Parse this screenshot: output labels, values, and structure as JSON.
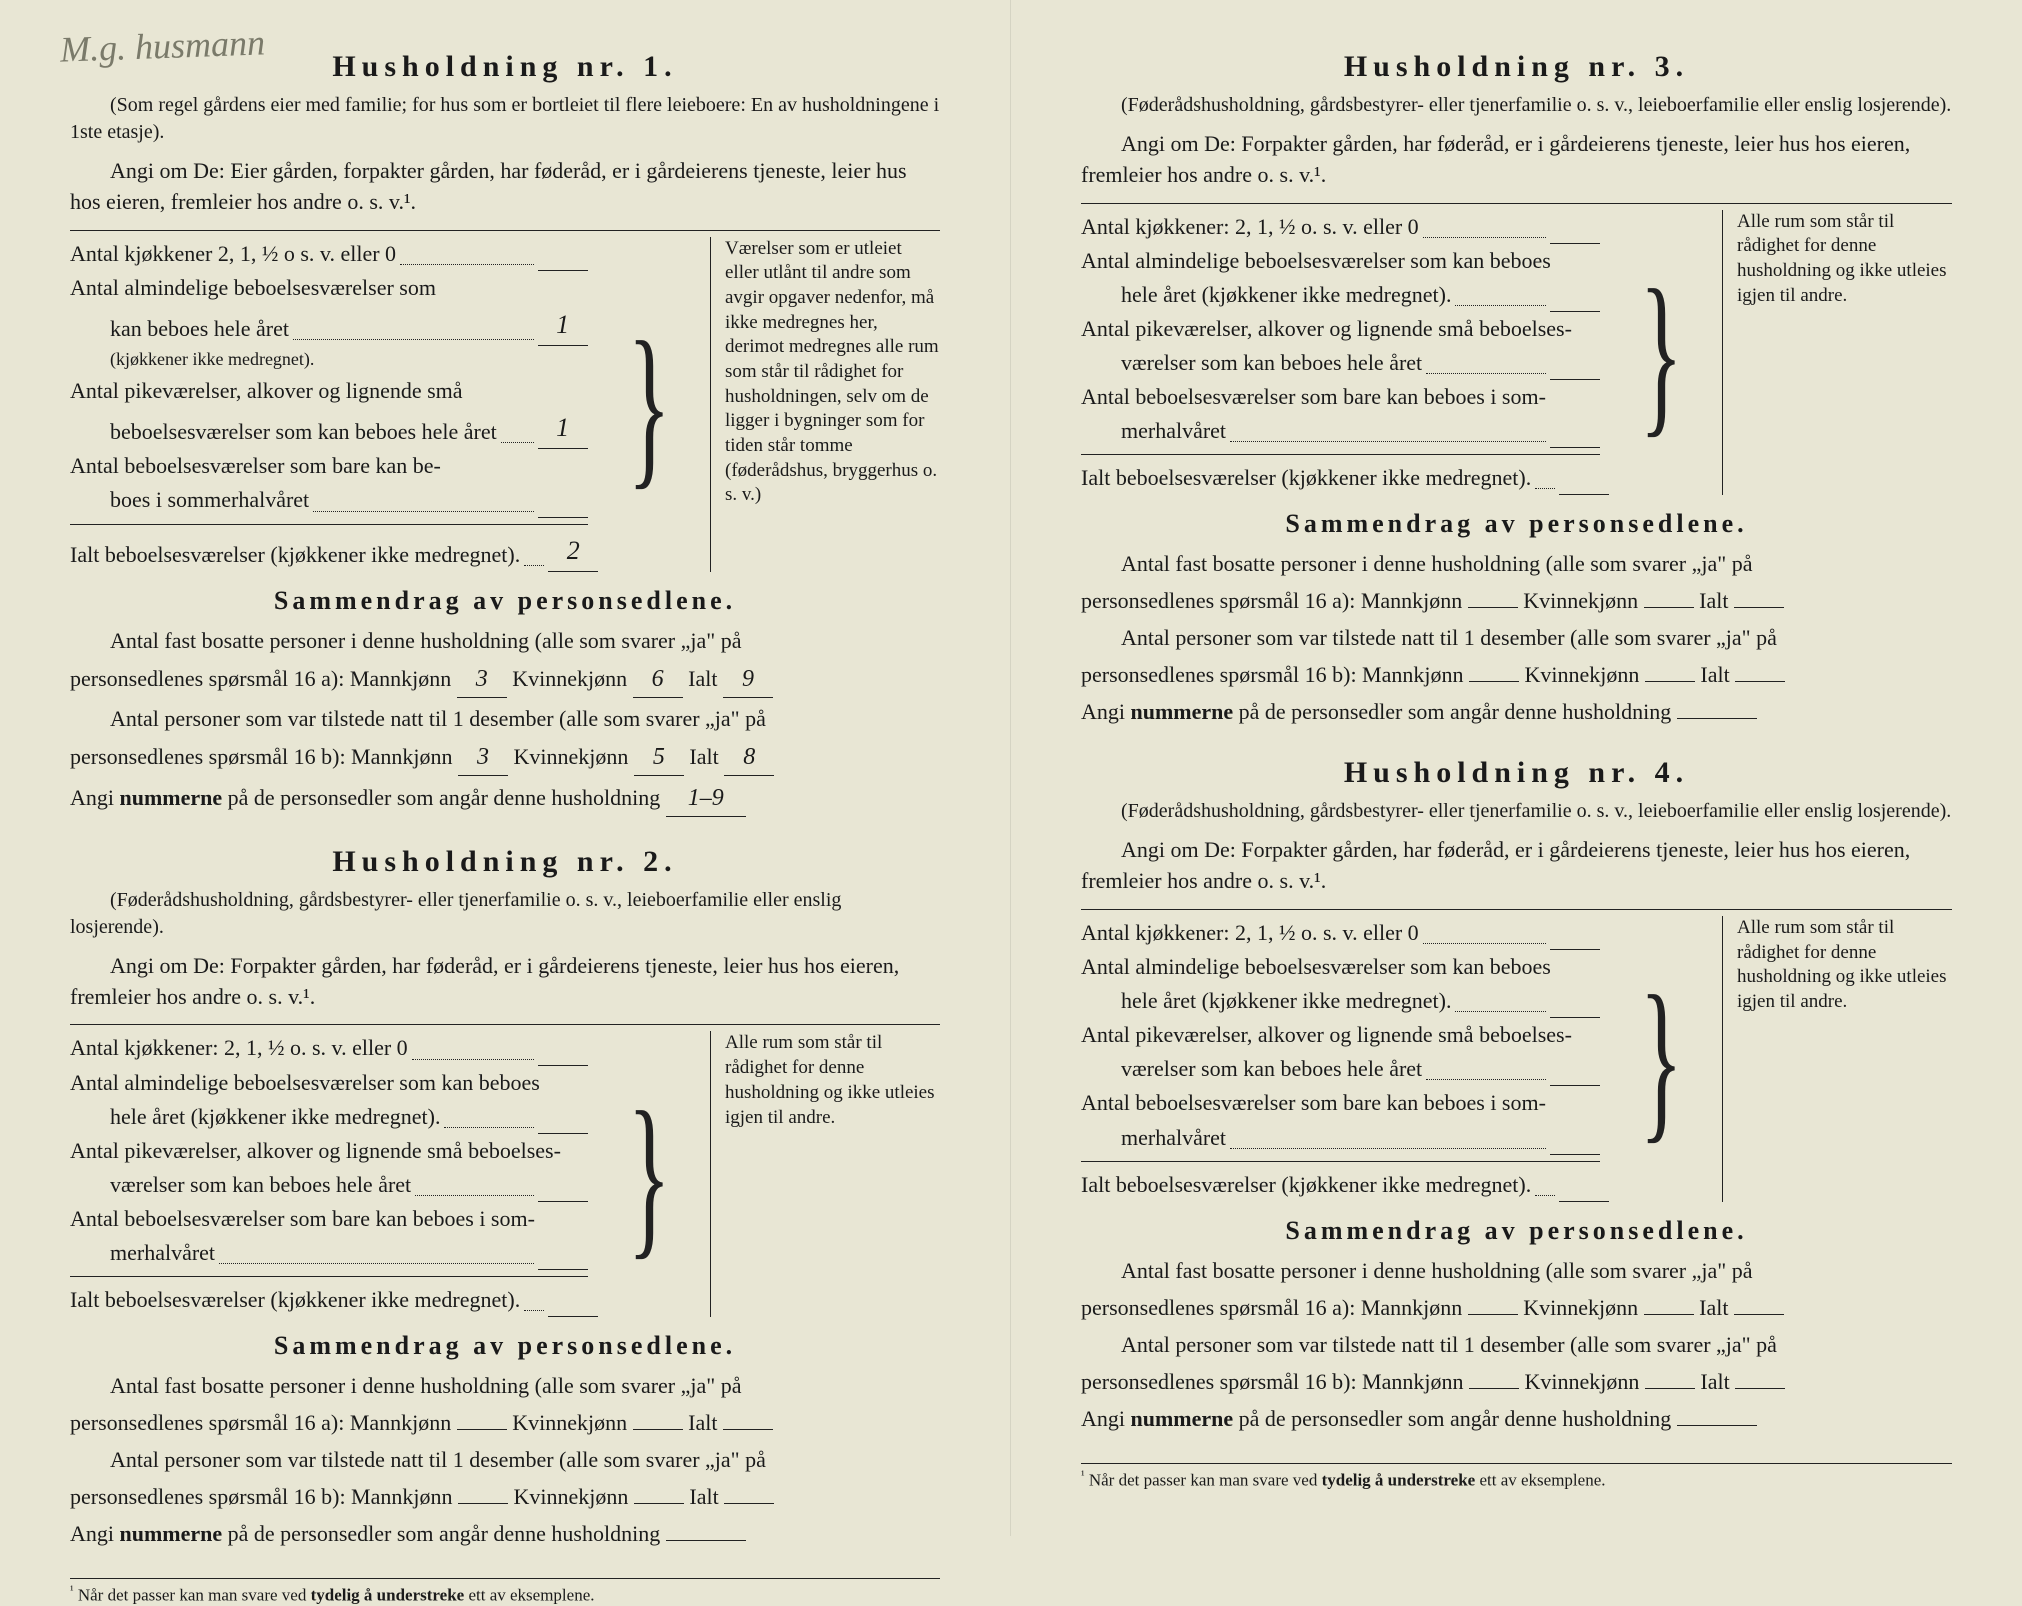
{
  "handwritten_top": "M.g. husmann",
  "households": [
    {
      "title": "Husholdning nr. 1.",
      "subtitle": "(Som regel gårdens eier med familie; for hus som er bortleiet til flere leieboere: En av husholdningene i 1ste etasje).",
      "instruction": "Angi om De: Eier gården, forpakter gården, har føderåd, er i gårdeierens tjeneste, leier hus hos eieren, fremleier hos andre o. s. v.¹.",
      "rows": {
        "kjokkener_label": "Antal kjøkkener 2, 1, ½ o s. v. eller 0",
        "kjokkener_value": "",
        "almindelige_label1": "Antal almindelige beboelsesværelser som",
        "almindelige_label2": "kan beboes hele året",
        "almindelige_subnote": "(kjøkkener ikke medregnet).",
        "almindelige_value": "1",
        "pike_label1": "Antal pikeværelser, alkover og lignende små",
        "pike_label2": "beboelsesværelser som kan beboes hele året",
        "pike_value": "1",
        "sommer_label1": "Antal beboelsesværelser som bare kan be-",
        "sommer_label2": "boes i sommerhalvåret",
        "sommer_value": "",
        "ialt_label": "Ialt beboelsesværelser (kjøkkener ikke medregnet).",
        "ialt_value": "2"
      },
      "sidenote": "Værelser som er utleiet eller utlånt til andre som avgir opgaver nedenfor, må ikke medregnes her, derimot medregnes alle rum som står til rådighet for husholdningen, selv om de ligger i bygninger som for tiden står tomme (føderådshus, bryggerhus o. s. v.)",
      "summary_title": "Sammendrag av personsedlene.",
      "summary": {
        "line1a": "Antal fast bosatte personer i denne husholdning (alle som svarer „ja\" på",
        "line1b_prefix": "personsedlenes spørsmål 16 a): Mannkjønn",
        "mann_a": "3",
        "kvinne_label": "Kvinnekjønn",
        "kvinne_a": "6",
        "ialt_label": "Ialt",
        "ialt_a": "9",
        "line2a": "Antal personer som var tilstede natt til 1 desember (alle som svarer „ja\" på",
        "line2b_prefix": "personsedlenes spørsmål 16 b): Mannkjønn",
        "mann_b": "3",
        "kvinne_b": "5",
        "ialt_b": "8",
        "angi_prefix": "Angi ",
        "angi_bold": "nummerne",
        "angi_suffix": " på de personsedler som angår denne husholdning",
        "angi_value": "1–9"
      }
    },
    {
      "title": "Husholdning nr. 2.",
      "subtitle": "(Føderådshusholdning, gårdsbestyrer- eller tjenerfamilie o. s. v., leieboerfamilie eller enslig losjerende).",
      "instruction": "Angi om De: Forpakter gården, har føderåd, er i gårdeierens tjeneste, leier hus hos eieren, fremleier hos andre o. s. v.¹.",
      "rows": {
        "kjokkener_label": "Antal kjøkkener: 2, 1, ½ o. s. v. eller 0",
        "kjokkener_value": "",
        "almindelige_label1": "Antal almindelige beboelsesværelser som kan beboes",
        "almindelige_label2": "hele året (kjøkkener ikke medregnet).",
        "almindelige_value": "",
        "pike_label1": "Antal pikeværelser, alkover og lignende små beboelses-",
        "pike_label2": "værelser som kan beboes hele året",
        "pike_value": "",
        "sommer_label1": "Antal beboelsesværelser som bare kan beboes i som-",
        "sommer_label2": "merhalvåret",
        "sommer_value": "",
        "ialt_label": "Ialt beboelsesværelser (kjøkkener ikke medregnet).",
        "ialt_value": ""
      },
      "sidenote": "Alle rum som står til rådighet for denne husholdning og ikke utleies igjen til andre.",
      "summary_title": "Sammendrag av personsedlene.",
      "summary": {
        "line1a": "Antal fast bosatte personer i denne husholdning (alle som svarer „ja\" på",
        "line1b_prefix": "personsedlenes spørsmål 16 a): Mannkjønn",
        "mann_a": "",
        "kvinne_label": "Kvinnekjønn",
        "kvinne_a": "",
        "ialt_label": "Ialt",
        "ialt_a": "",
        "line2a": "Antal personer som var tilstede natt til 1 desember (alle som svarer „ja\" på",
        "line2b_prefix": "personsedlenes spørsmål 16 b): Mannkjønn",
        "mann_b": "",
        "kvinne_b": "",
        "ialt_b": "",
        "angi_prefix": "Angi ",
        "angi_bold": "nummerne",
        "angi_suffix": " på de personsedler som angår denne husholdning",
        "angi_value": ""
      }
    },
    {
      "title": "Husholdning nr. 3.",
      "subtitle": "(Føderådshusholdning, gårdsbestyrer- eller tjenerfamilie o. s. v., leieboerfamilie eller enslig losjerende).",
      "instruction": "Angi om De: Forpakter gården, har føderåd, er i gårdeierens tjeneste, leier hus hos eieren, fremleier hos andre o. s. v.¹.",
      "rows": {
        "kjokkener_label": "Antal kjøkkener: 2, 1, ½ o. s. v. eller 0",
        "kjokkener_value": "",
        "almindelige_label1": "Antal almindelige beboelsesværelser som kan beboes",
        "almindelige_label2": "hele året (kjøkkener ikke medregnet).",
        "almindelige_value": "",
        "pike_label1": "Antal pikeværelser, alkover og lignende små beboelses-",
        "pike_label2": "værelser som kan beboes hele året",
        "pike_value": "",
        "sommer_label1": "Antal beboelsesværelser som bare kan beboes i som-",
        "sommer_label2": "merhalvåret",
        "sommer_value": "",
        "ialt_label": "Ialt beboelsesværelser (kjøkkener ikke medregnet).",
        "ialt_value": ""
      },
      "sidenote": "Alle rum som står til rådighet for denne husholdning og ikke utleies igjen til andre.",
      "summary_title": "Sammendrag av personsedlene.",
      "summary": {
        "line1a": "Antal fast bosatte personer i denne husholdning (alle som svarer „ja\" på",
        "line1b_prefix": "personsedlenes spørsmål 16 a): Mannkjønn",
        "mann_a": "",
        "kvinne_label": "Kvinnekjønn",
        "kvinne_a": "",
        "ialt_label": "Ialt",
        "ialt_a": "",
        "line2a": "Antal personer som var tilstede natt til 1 desember (alle som svarer „ja\" på",
        "line2b_prefix": "personsedlenes spørsmål 16 b): Mannkjønn",
        "mann_b": "",
        "kvinne_b": "",
        "ialt_b": "",
        "angi_prefix": "Angi ",
        "angi_bold": "nummerne",
        "angi_suffix": " på de personsedler som angår denne husholdning",
        "angi_value": ""
      }
    },
    {
      "title": "Husholdning nr. 4.",
      "subtitle": "(Føderådshusholdning, gårdsbestyrer- eller tjenerfamilie o. s. v., leieboerfamilie eller enslig losjerende).",
      "instruction": "Angi om De: Forpakter gården, har føderåd, er i gårdeierens tjeneste, leier hus hos eieren, fremleier hos andre o. s. v.¹.",
      "rows": {
        "kjokkener_label": "Antal kjøkkener: 2, 1, ½ o. s. v. eller 0",
        "kjokkener_value": "",
        "almindelige_label1": "Antal almindelige beboelsesværelser som kan beboes",
        "almindelige_label2": "hele året (kjøkkener ikke medregnet).",
        "almindelige_value": "",
        "pike_label1": "Antal pikeværelser, alkover og lignende små beboelses-",
        "pike_label2": "værelser som kan beboes hele året",
        "pike_value": "",
        "sommer_label1": "Antal beboelsesværelser som bare kan beboes i som-",
        "sommer_label2": "merhalvåret",
        "sommer_value": "",
        "ialt_label": "Ialt beboelsesværelser (kjøkkener ikke medregnet).",
        "ialt_value": ""
      },
      "sidenote": "Alle rum som står til rådighet for denne husholdning og ikke utleies igjen til andre.",
      "summary_title": "Sammendrag av personsedlene.",
      "summary": {
        "line1a": "Antal fast bosatte personer i denne husholdning (alle som svarer „ja\" på",
        "line1b_prefix": "personsedlenes spørsmål 16 a): Mannkjønn",
        "mann_a": "",
        "kvinne_label": "Kvinnekjønn",
        "kvinne_a": "",
        "ialt_label": "Ialt",
        "ialt_a": "",
        "line2a": "Antal personer som var tilstede natt til 1 desember (alle som svarer „ja\" på",
        "line2b_prefix": "personsedlenes spørsmål 16 b): Mannkjønn",
        "mann_b": "",
        "kvinne_b": "",
        "ialt_b": "",
        "angi_prefix": "Angi ",
        "angi_bold": "nummerne",
        "angi_suffix": " på de personsedler som angår denne husholdning",
        "angi_value": ""
      }
    }
  ],
  "footnote": {
    "marker": "¹",
    "text_prefix": " Når det passer kan man svare ved ",
    "text_bold": "tydelig å understreke",
    "text_suffix": " ett av eksemplene."
  }
}
